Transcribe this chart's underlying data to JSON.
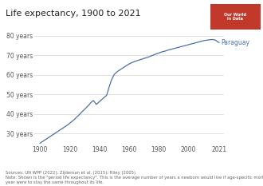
{
  "title": "Life expectancy, 1900 to 2021",
  "ylabel_ticks": [
    "30 years",
    "40 years",
    "50 years",
    "60 years",
    "70 years",
    "80 years"
  ],
  "ytick_values": [
    30,
    40,
    50,
    60,
    70,
    80
  ],
  "xtick_values": [
    1900,
    1920,
    1940,
    1960,
    1980,
    2000,
    2021
  ],
  "line_color": "#4c6fa5",
  "label_color": "#4c6fa5",
  "country_label": "Paraguay",
  "background_color": "#ffffff",
  "grid_color": "#e0e0e0",
  "plot_bg_color": "#ffffff",
  "owid_box_color": "#c0392b",
  "years": [
    1900,
    1901,
    1902,
    1903,
    1904,
    1905,
    1906,
    1907,
    1908,
    1909,
    1910,
    1911,
    1912,
    1913,
    1914,
    1915,
    1916,
    1917,
    1918,
    1919,
    1920,
    1921,
    1922,
    1923,
    1924,
    1925,
    1926,
    1927,
    1928,
    1929,
    1930,
    1931,
    1932,
    1933,
    1934,
    1935,
    1936,
    1937,
    1938,
    1939,
    1940,
    1941,
    1942,
    1943,
    1944,
    1945,
    1946,
    1947,
    1948,
    1949,
    1950,
    1951,
    1952,
    1953,
    1954,
    1955,
    1956,
    1957,
    1958,
    1959,
    1960,
    1961,
    1962,
    1963,
    1964,
    1965,
    1966,
    1967,
    1968,
    1969,
    1970,
    1971,
    1972,
    1973,
    1974,
    1975,
    1976,
    1977,
    1978,
    1979,
    1980,
    1981,
    1982,
    1983,
    1984,
    1985,
    1986,
    1987,
    1988,
    1989,
    1990,
    1991,
    1992,
    1993,
    1994,
    1995,
    1996,
    1997,
    1998,
    1999,
    2000,
    2001,
    2002,
    2003,
    2004,
    2005,
    2006,
    2007,
    2008,
    2009,
    2010,
    2011,
    2012,
    2013,
    2014,
    2015,
    2016,
    2017,
    2018,
    2019,
    2020,
    2021
  ],
  "values": [
    25.0,
    25.5,
    26.0,
    26.5,
    27.0,
    27.5,
    28.0,
    28.5,
    29.0,
    29.5,
    30.0,
    30.5,
    31.0,
    31.5,
    32.0,
    32.5,
    33.0,
    33.5,
    34.0,
    34.5,
    35.2,
    35.8,
    36.4,
    37.0,
    37.8,
    38.5,
    39.2,
    40.0,
    40.8,
    41.5,
    42.2,
    43.0,
    43.8,
    44.5,
    45.5,
    46.2,
    46.8,
    45.8,
    44.8,
    45.5,
    46.2,
    46.8,
    47.5,
    48.2,
    48.8,
    49.5,
    52.0,
    54.5,
    56.8,
    58.5,
    60.0,
    60.8,
    61.5,
    62.0,
    62.5,
    63.0,
    63.5,
    64.0,
    64.5,
    65.0,
    65.4,
    65.8,
    66.2,
    66.5,
    66.8,
    67.0,
    67.3,
    67.5,
    67.8,
    68.0,
    68.3,
    68.5,
    68.8,
    69.0,
    69.3,
    69.6,
    69.9,
    70.2,
    70.5,
    70.8,
    71.0,
    71.3,
    71.6,
    71.8,
    72.0,
    72.2,
    72.5,
    72.7,
    72.9,
    73.1,
    73.3,
    73.5,
    73.7,
    73.9,
    74.1,
    74.3,
    74.5,
    74.7,
    74.9,
    75.1,
    75.3,
    75.5,
    75.7,
    75.9,
    76.1,
    76.3,
    76.5,
    76.7,
    76.9,
    77.1,
    77.3,
    77.5,
    77.6,
    77.7,
    77.8,
    77.9,
    78.0,
    78.0,
    77.8,
    77.5,
    76.8,
    76.5
  ],
  "source_text": "Sources: UN WPP (2022); Zijdeman et al. (2015); Riley (2005)\nNote: Shown is the \"period life expectancy\". This is the average number of years a newborn would live if age-specific mortality r\nyear were to stay the same throughout its life.",
  "title_fontsize": 8,
  "tick_fontsize": 5.5,
  "source_fontsize": 3.8,
  "label_fontsize": 5.5
}
